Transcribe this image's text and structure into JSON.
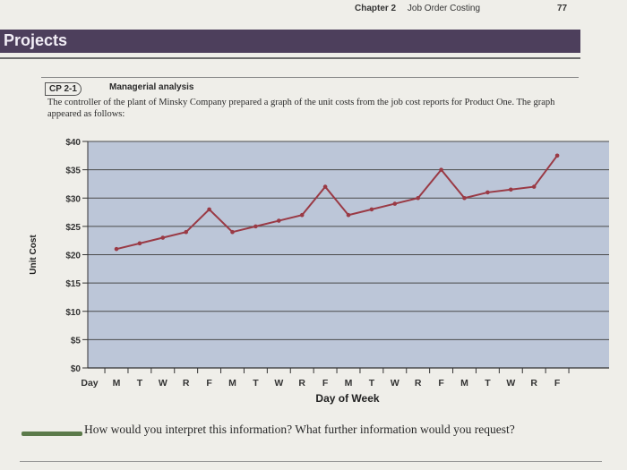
{
  "header": {
    "chapter": "Chapter 2",
    "chapter_title": "Job Order Costing",
    "page_number": "77"
  },
  "section": {
    "title": "Projects"
  },
  "problem": {
    "tag": "CP 2-1",
    "title": "Managerial analysis",
    "intro": "The controller of the plant of Minsky Company prepared a graph of the unit costs from the job cost reports for Product One. The graph appeared as follows:"
  },
  "chart_data": {
    "type": "line",
    "xlabel": "Day of Week",
    "ylabel": "Unit Cost",
    "x_first_label": "Day",
    "categories": [
      "M",
      "T",
      "W",
      "R",
      "F",
      "M",
      "T",
      "W",
      "R",
      "F",
      "M",
      "T",
      "W",
      "R",
      "F",
      "M",
      "T",
      "W",
      "R",
      "F"
    ],
    "yticks": [
      "$0",
      "$5",
      "$10",
      "$15",
      "$20",
      "$25",
      "$30",
      "$35",
      "$40"
    ],
    "ylim": [
      0,
      40
    ],
    "grid": true,
    "series": [
      {
        "values": [
          21,
          22,
          23,
          24,
          28,
          24,
          25,
          26,
          27,
          32,
          27,
          28,
          29,
          30,
          35,
          30,
          31,
          31.5,
          32,
          37.5
        ]
      }
    ],
    "colors": {
      "plot_bg": "#bcc6d8",
      "line": "#9a3a45",
      "grid": "#4a4a4a"
    }
  },
  "question": {
    "text": "How would you interpret this information? What further information would you request?"
  }
}
